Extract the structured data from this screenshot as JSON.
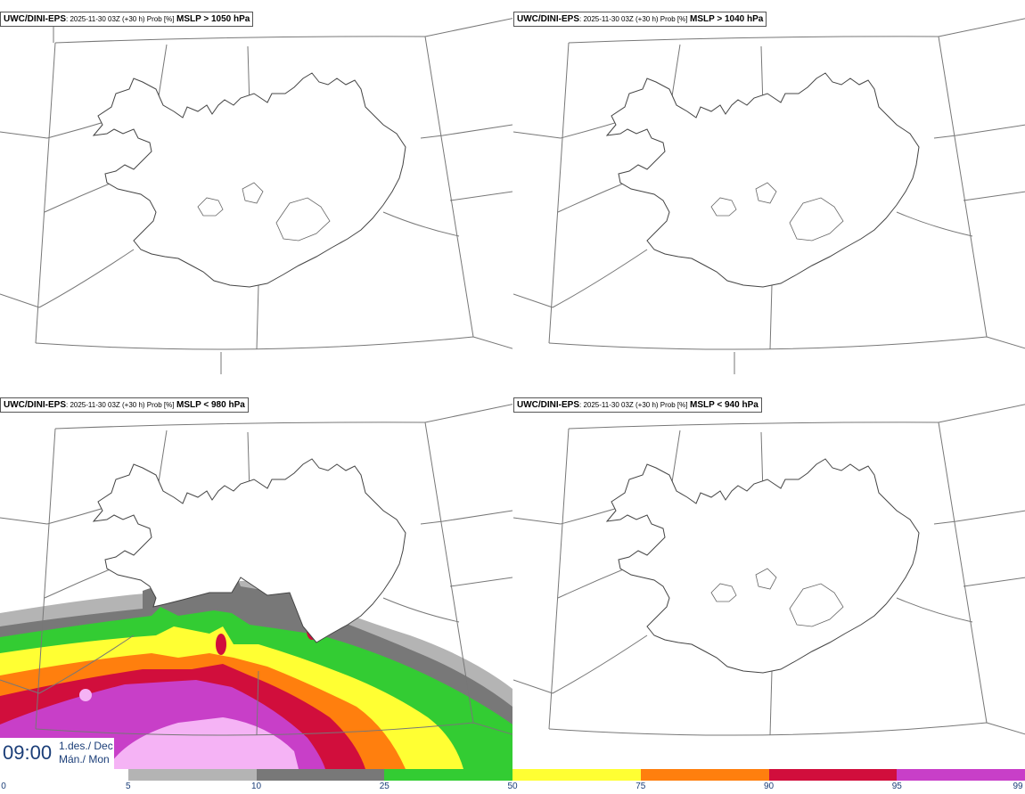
{
  "panels": [
    {
      "model": "UWC/DINI-EPS",
      "run": "2025-11-30 03Z (+30 h) Prob [%]",
      "field": "MSLP > 1050 hPa"
    },
    {
      "model": "UWC/DINI-EPS",
      "run": "2025-11-30 03Z (+30 h) Prob [%]",
      "field": "MSLP > 1040 hPa"
    },
    {
      "model": "UWC/DINI-EPS",
      "run": "2025-11-30 03Z (+30 h) Prob [%]",
      "field": "MSLP < 980 hPa"
    },
    {
      "model": "UWC/DINI-EPS",
      "run": "2025-11-30 03Z (+30 h) Prob [%]",
      "field": "MSLP < 940 hPa"
    }
  ],
  "valid": {
    "time": "09:00",
    "date_line1": "1.des./ Dec",
    "date_line2": "Mán./ Mon"
  },
  "colorbar": {
    "ticks": [
      "0",
      "5",
      "10",
      "25",
      "50",
      "75",
      "90",
      "95",
      "99"
    ],
    "colors": [
      "#ffffff",
      "#b4b4b4",
      "#787878",
      "#33cc33",
      "#ffff33",
      "#ff7f0e",
      "#d10e3c",
      "#c83fc8",
      "#f5b3f5"
    ]
  }
}
